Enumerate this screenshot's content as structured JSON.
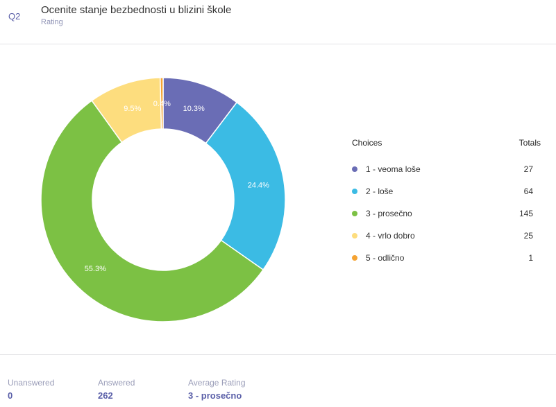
{
  "question": {
    "number": "Q2",
    "title": "Ocenite stanje bezbednosti u blizini škole",
    "type": "Rating"
  },
  "chart_data": {
    "type": "pie",
    "donut": true,
    "categories": [
      "1 - veoma loše",
      "2 - loše",
      "3 - prosečno",
      "4 - vrlo dobro",
      "5 - odlično"
    ],
    "values": [
      27,
      64,
      145,
      25,
      1
    ],
    "percent_labels": [
      "10.3%",
      "24.4%",
      "55.3%",
      "9.5%",
      "0.4%"
    ],
    "colors": [
      "#6a6db5",
      "#3bbbe4",
      "#7cc144",
      "#fddd7e",
      "#f5a332"
    ],
    "legend_position": "right"
  },
  "legend": {
    "choices_header": "Choices",
    "totals_header": "Totals"
  },
  "stats": {
    "unanswered_label": "Unanswered",
    "unanswered_value": "0",
    "answered_label": "Answered",
    "answered_value": "262",
    "average_label": "Average Rating",
    "average_value": "3 - prosečno"
  }
}
